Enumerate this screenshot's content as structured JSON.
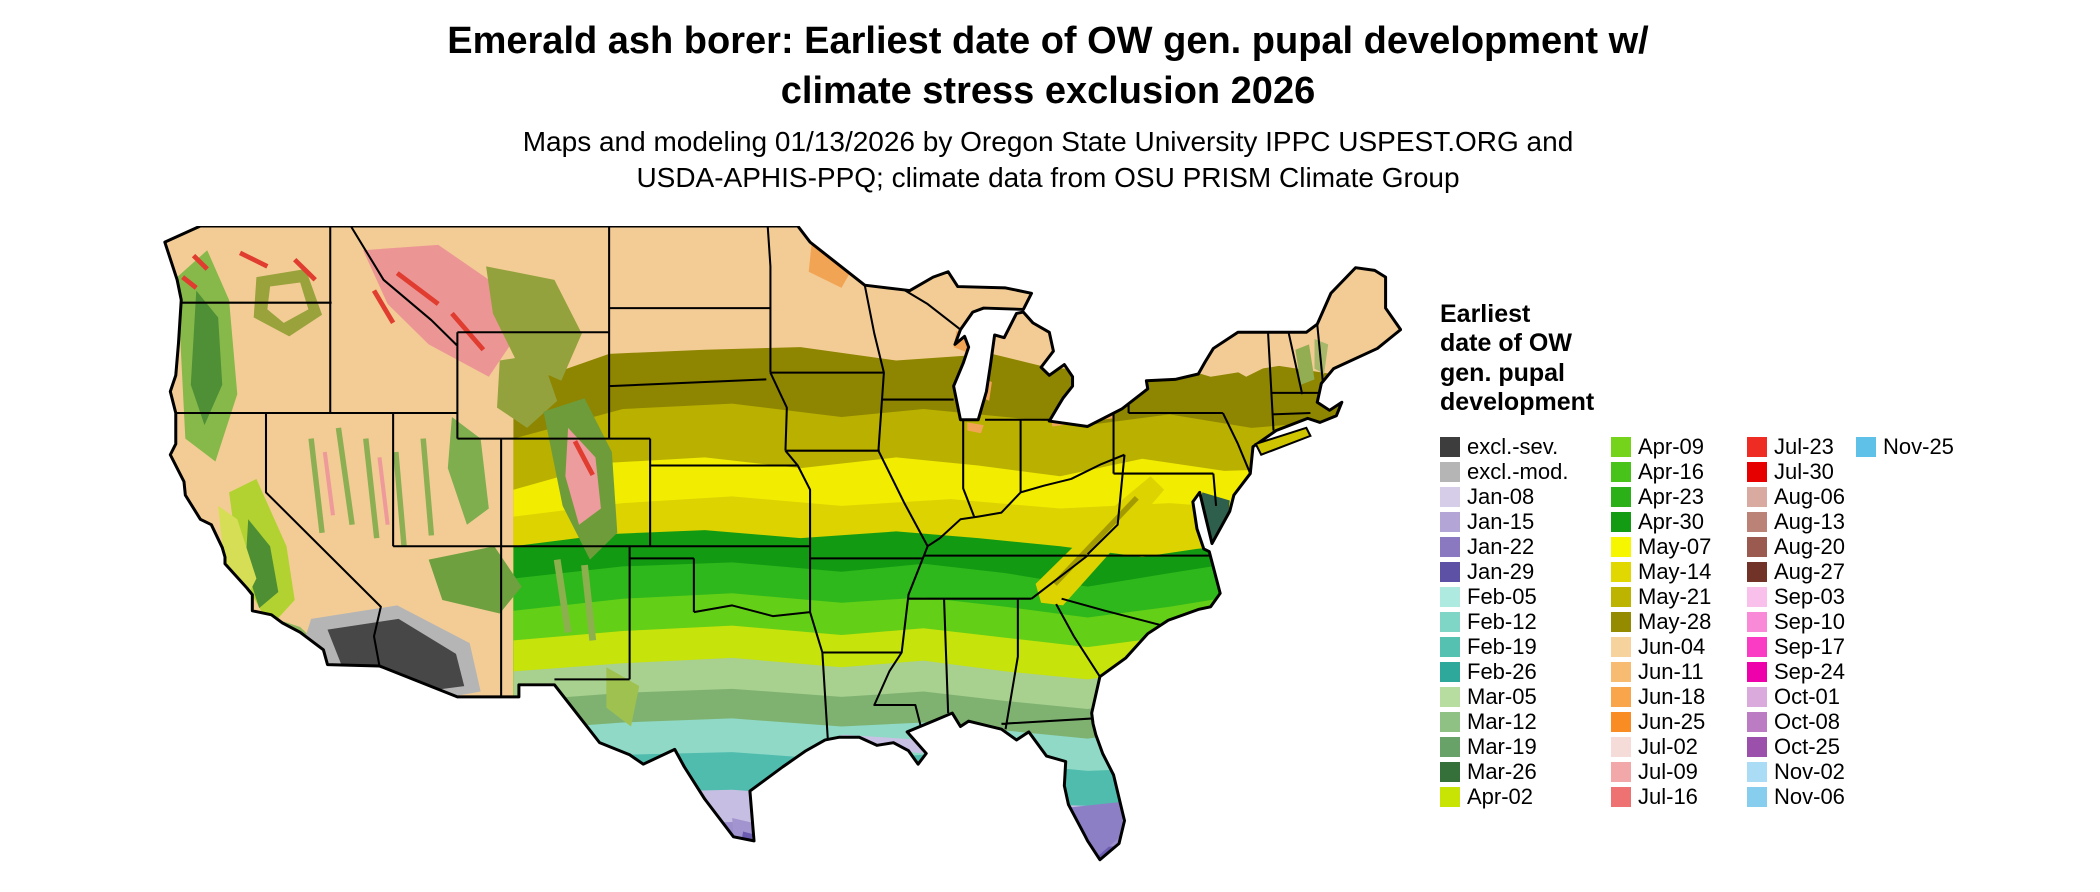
{
  "page": {
    "background": "#ffffff"
  },
  "header": {
    "title": "Emerald ash borer: Earliest date of OW gen. pupal development w/\nclimate stress exclusion 2026",
    "subtitle": "Maps and modeling 01/13/2026 by Oregon State University IPPC USPEST.ORG and\nUSDA-APHIS-PPQ; climate data from OSU PRISM Climate Group"
  },
  "map": {
    "description": "CONUS choropleth map: earliest date of overwintering generation pupal development, colored by date class with climate stress exclusion"
  },
  "legend": {
    "title": "Earliest\ndate of OW\ngen. pupal\ndevelopment",
    "columns": [
      [
        {
          "label": "excl.-sev.",
          "color": "#3d3d3d"
        },
        {
          "label": "excl.-mod.",
          "color": "#b5b5b5"
        },
        {
          "label": "Jan-08",
          "color": "#d6cde8"
        },
        {
          "label": "Jan-15",
          "color": "#b3a6d6"
        },
        {
          "label": "Jan-22",
          "color": "#8a78c0"
        },
        {
          "label": "Jan-29",
          "color": "#5d51a5"
        },
        {
          "label": "Feb-05",
          "color": "#aeeadf"
        },
        {
          "label": "Feb-12",
          "color": "#7fd6c6"
        },
        {
          "label": "Feb-19",
          "color": "#55c2b1"
        },
        {
          "label": "Feb-26",
          "color": "#2fa89c"
        },
        {
          "label": "Mar-05",
          "color": "#b7dda0"
        },
        {
          "label": "Mar-12",
          "color": "#90c184"
        },
        {
          "label": "Mar-19",
          "color": "#68a268"
        },
        {
          "label": "Mar-26",
          "color": "#35703a"
        },
        {
          "label": "Apr-02",
          "color": "#c8e405"
        }
      ],
      [
        {
          "label": "Apr-09",
          "color": "#76d31c"
        },
        {
          "label": "Apr-16",
          "color": "#47c31a"
        },
        {
          "label": "Apr-23",
          "color": "#2bb117"
        },
        {
          "label": "Apr-30",
          "color": "#149b14"
        },
        {
          "label": "May-07",
          "color": "#f6f600"
        },
        {
          "label": "May-14",
          "color": "#e0d800"
        },
        {
          "label": "May-21",
          "color": "#bdb400"
        },
        {
          "label": "May-28",
          "color": "#948b00"
        },
        {
          "label": "Jun-04",
          "color": "#f6d29c"
        },
        {
          "label": "Jun-11",
          "color": "#f7bc72"
        },
        {
          "label": "Jun-18",
          "color": "#f8a54b"
        },
        {
          "label": "Jun-25",
          "color": "#f98d24"
        },
        {
          "label": "Jul-02",
          "color": "#f6dcd8"
        },
        {
          "label": "Jul-09",
          "color": "#f2a8a8"
        },
        {
          "label": "Jul-16",
          "color": "#ee7272"
        }
      ],
      [
        {
          "label": "Jul-23",
          "color": "#ee2c24"
        },
        {
          "label": "Jul-30",
          "color": "#e60000"
        },
        {
          "label": "Aug-06",
          "color": "#d8aaa0"
        },
        {
          "label": "Aug-13",
          "color": "#bb8278"
        },
        {
          "label": "Aug-20",
          "color": "#9a5a50"
        },
        {
          "label": "Aug-27",
          "color": "#713328"
        },
        {
          "label": "Sep-03",
          "color": "#f8c0ea"
        },
        {
          "label": "Sep-10",
          "color": "#f98ad8"
        },
        {
          "label": "Sep-17",
          "color": "#fa3cc4"
        },
        {
          "label": "Sep-24",
          "color": "#ee00aa"
        },
        {
          "label": "Oct-01",
          "color": "#d9aadb"
        },
        {
          "label": "Oct-08",
          "color": "#bc7cc4"
        },
        {
          "label": "Oct-25",
          "color": "#9b51ab"
        },
        {
          "label": "Nov-02",
          "color": "#aaddf5"
        },
        {
          "label": "Nov-06",
          "color": "#86cdee"
        }
      ],
      [
        {
          "label": "Nov-25",
          "color": "#5fc0e8"
        }
      ]
    ]
  }
}
